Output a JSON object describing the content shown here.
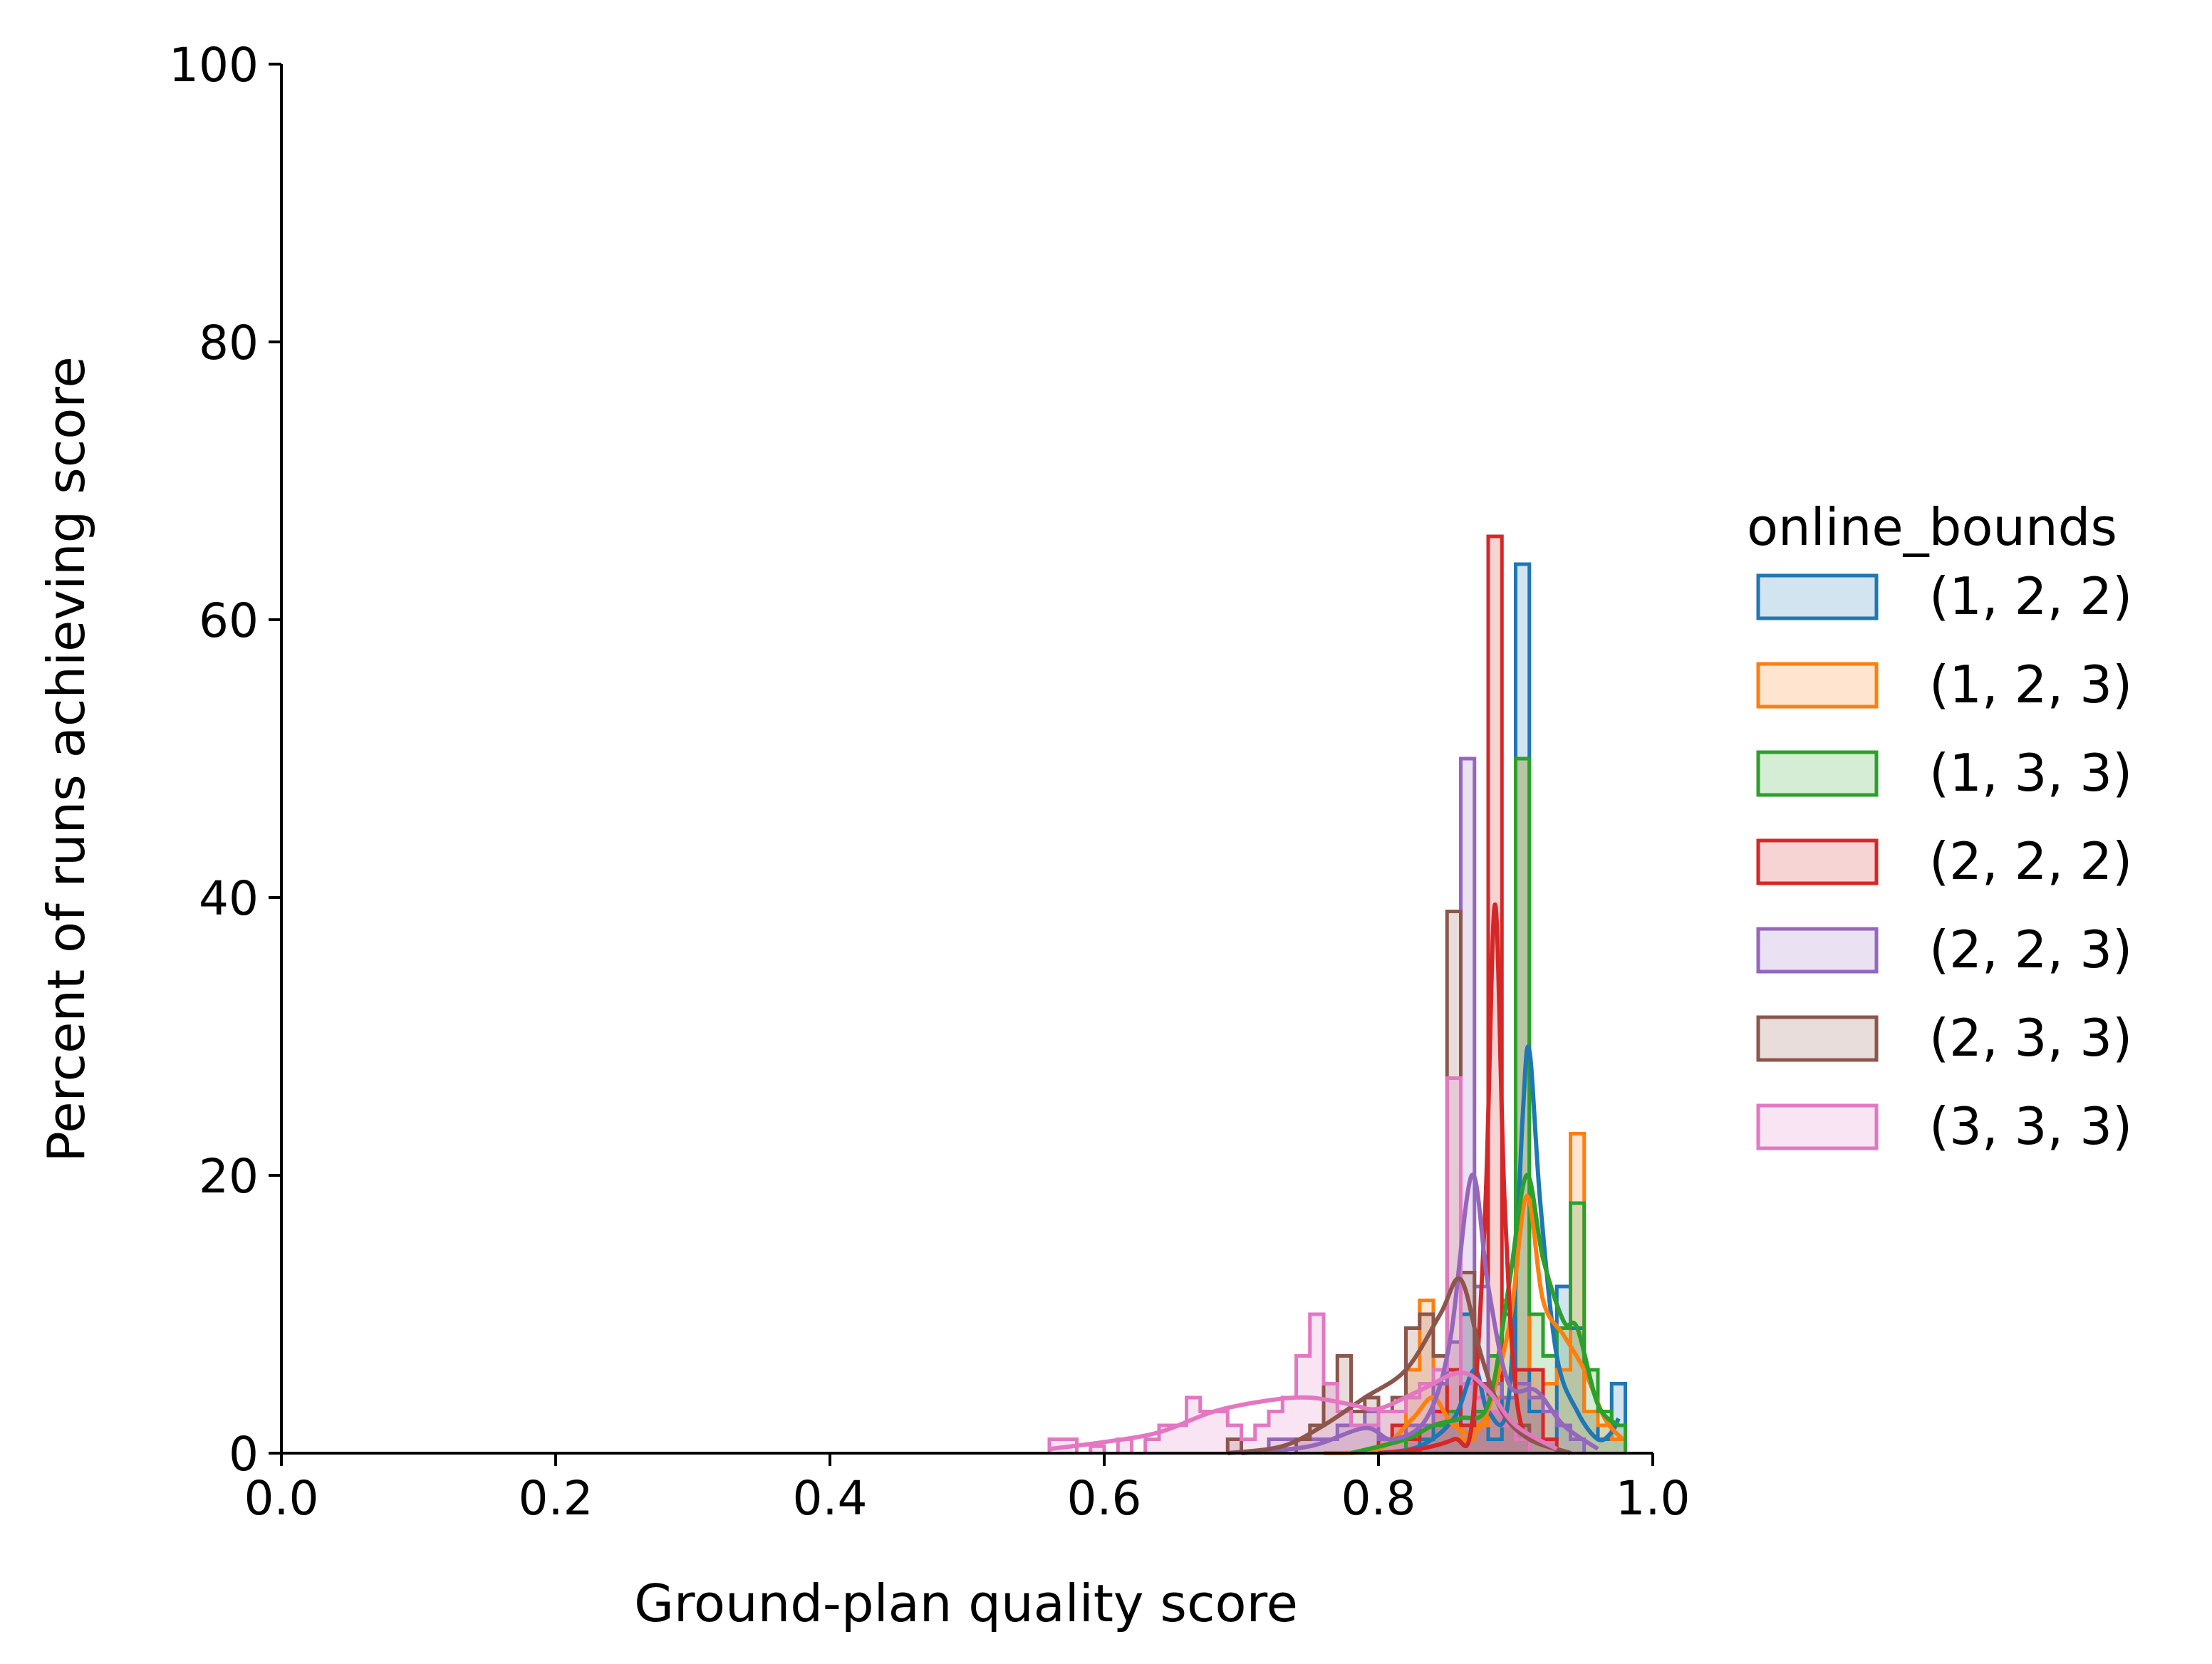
{
  "chart_data": {
    "type": "histogram",
    "xlabel": "Ground-plan quality score",
    "ylabel": "Percent of runs achieving score",
    "xlim": [
      0.0,
      1.0
    ],
    "ylim": [
      0,
      100
    ],
    "xticks": [
      0.0,
      0.2,
      0.4,
      0.6,
      0.8,
      1.0
    ],
    "xtick_labels": [
      "0.0",
      "0.2",
      "0.4",
      "0.6",
      "0.8",
      "1.0"
    ],
    "yticks": [
      0,
      20,
      40,
      60,
      80,
      100
    ],
    "ytick_labels": [
      "0",
      "20",
      "40",
      "60",
      "80",
      "100"
    ],
    "grid": false,
    "legend_title": "online_bounds",
    "legend_placement": "right",
    "series": [
      {
        "name": "(1, 2, 2)",
        "color": "#1f77b4",
        "bins": [
          [
            0.83,
            0.84,
            1
          ],
          [
            0.84,
            0.85,
            2
          ],
          [
            0.85,
            0.86,
            3
          ],
          [
            0.86,
            0.87,
            10
          ],
          [
            0.87,
            0.88,
            3
          ],
          [
            0.88,
            0.89,
            1
          ],
          [
            0.89,
            0.9,
            4
          ],
          [
            0.9,
            0.91,
            64
          ],
          [
            0.91,
            0.92,
            3
          ],
          [
            0.92,
            0.93,
            1
          ],
          [
            0.93,
            0.94,
            12
          ],
          [
            0.94,
            0.95,
            9
          ],
          [
            0.95,
            0.96,
            3
          ],
          [
            0.96,
            0.97,
            1
          ],
          [
            0.97,
            0.98,
            5
          ]
        ],
        "kde": [
          [
            0.8,
            0
          ],
          [
            0.83,
            0.5
          ],
          [
            0.855,
            2.5
          ],
          [
            0.87,
            6
          ],
          [
            0.88,
            3
          ],
          [
            0.895,
            4
          ],
          [
            0.905,
            24
          ],
          [
            0.91,
            29
          ],
          [
            0.918,
            18
          ],
          [
            0.93,
            7
          ],
          [
            0.945,
            3
          ],
          [
            0.96,
            1
          ],
          [
            0.97,
            1.5
          ],
          [
            0.975,
            2.5
          ]
        ]
      },
      {
        "name": "(1, 2, 3)",
        "color": "#ff7f0e",
        "bins": [
          [
            0.8,
            0.81,
            1
          ],
          [
            0.81,
            0.82,
            2
          ],
          [
            0.82,
            0.83,
            6
          ],
          [
            0.83,
            0.84,
            11
          ],
          [
            0.84,
            0.85,
            5
          ],
          [
            0.85,
            0.86,
            2
          ],
          [
            0.86,
            0.87,
            1
          ],
          [
            0.87,
            0.88,
            2
          ],
          [
            0.88,
            0.89,
            4
          ],
          [
            0.89,
            0.9,
            11
          ],
          [
            0.9,
            0.91,
            50
          ],
          [
            0.91,
            0.92,
            6
          ],
          [
            0.92,
            0.93,
            5
          ],
          [
            0.93,
            0.94,
            6
          ],
          [
            0.94,
            0.95,
            23
          ],
          [
            0.95,
            0.96,
            3
          ],
          [
            0.96,
            0.97,
            2
          ],
          [
            0.97,
            0.98,
            1
          ]
        ],
        "kde": [
          [
            0.76,
            0
          ],
          [
            0.8,
            0.3
          ],
          [
            0.825,
            2.5
          ],
          [
            0.84,
            4
          ],
          [
            0.855,
            2
          ],
          [
            0.875,
            2
          ],
          [
            0.895,
            9
          ],
          [
            0.908,
            18.5
          ],
          [
            0.92,
            11
          ],
          [
            0.935,
            8.5
          ],
          [
            0.95,
            6
          ],
          [
            0.965,
            2.5
          ],
          [
            0.978,
            1
          ]
        ]
      },
      {
        "name": "(1, 3, 3)",
        "color": "#2ca02c",
        "bins": [
          [
            0.82,
            0.83,
            1
          ],
          [
            0.83,
            0.84,
            2
          ],
          [
            0.84,
            0.85,
            2
          ],
          [
            0.85,
            0.86,
            3
          ],
          [
            0.86,
            0.87,
            2
          ],
          [
            0.87,
            0.88,
            3
          ],
          [
            0.88,
            0.89,
            7
          ],
          [
            0.89,
            0.9,
            10
          ],
          [
            0.9,
            0.91,
            50
          ],
          [
            0.91,
            0.92,
            10
          ],
          [
            0.92,
            0.93,
            7
          ],
          [
            0.93,
            0.94,
            9
          ],
          [
            0.94,
            0.95,
            18
          ],
          [
            0.95,
            0.96,
            6
          ],
          [
            0.96,
            0.97,
            3
          ],
          [
            0.97,
            0.98,
            2
          ]
        ],
        "kde": [
          [
            0.78,
            0
          ],
          [
            0.82,
            1
          ],
          [
            0.84,
            2
          ],
          [
            0.86,
            2.5
          ],
          [
            0.88,
            3.5
          ],
          [
            0.895,
            12
          ],
          [
            0.908,
            20
          ],
          [
            0.92,
            14
          ],
          [
            0.935,
            9.5
          ],
          [
            0.945,
            9
          ],
          [
            0.96,
            3.5
          ],
          [
            0.975,
            2
          ]
        ]
      },
      {
        "name": "(2, 2, 2)",
        "color": "#d62728",
        "bins": [
          [
            0.8,
            0.81,
            1
          ],
          [
            0.81,
            0.82,
            2
          ],
          [
            0.82,
            0.83,
            1
          ],
          [
            0.83,
            0.84,
            2
          ],
          [
            0.84,
            0.85,
            3
          ],
          [
            0.85,
            0.86,
            6
          ],
          [
            0.86,
            0.87,
            2
          ],
          [
            0.87,
            0.88,
            5
          ],
          [
            0.88,
            0.89,
            66
          ],
          [
            0.89,
            0.9,
            4
          ],
          [
            0.9,
            0.91,
            6
          ],
          [
            0.91,
            0.92,
            6
          ],
          [
            0.92,
            0.93,
            1
          ]
        ],
        "kde": [
          [
            0.8,
            0
          ],
          [
            0.83,
            0.3
          ],
          [
            0.855,
            1
          ],
          [
            0.868,
            2
          ],
          [
            0.878,
            18
          ],
          [
            0.885,
            39.5
          ],
          [
            0.892,
            18
          ],
          [
            0.902,
            3
          ],
          [
            0.92,
            0.8
          ],
          [
            0.94,
            0
          ]
        ]
      },
      {
        "name": "(2, 2, 3)",
        "color": "#9467bd",
        "bins": [
          [
            0.72,
            0.73,
            1
          ],
          [
            0.73,
            0.74,
            1
          ],
          [
            0.74,
            0.75,
            1
          ],
          [
            0.75,
            0.76,
            1
          ],
          [
            0.76,
            0.77,
            1
          ],
          [
            0.77,
            0.78,
            2
          ],
          [
            0.78,
            0.79,
            2
          ],
          [
            0.79,
            0.8,
            3
          ],
          [
            0.8,
            0.81,
            1
          ],
          [
            0.81,
            0.82,
            1
          ],
          [
            0.82,
            0.83,
            2
          ],
          [
            0.83,
            0.84,
            2
          ],
          [
            0.84,
            0.85,
            5
          ],
          [
            0.85,
            0.86,
            8
          ],
          [
            0.86,
            0.87,
            50
          ],
          [
            0.87,
            0.88,
            12
          ],
          [
            0.88,
            0.89,
            5
          ],
          [
            0.89,
            0.9,
            4
          ],
          [
            0.9,
            0.91,
            5
          ],
          [
            0.91,
            0.92,
            4
          ],
          [
            0.92,
            0.93,
            3
          ],
          [
            0.93,
            0.94,
            2
          ],
          [
            0.94,
            0.95,
            1
          ]
        ],
        "kde": [
          [
            0.7,
            0
          ],
          [
            0.75,
            0.5
          ],
          [
            0.79,
            1.8
          ],
          [
            0.81,
            1
          ],
          [
            0.835,
            2.5
          ],
          [
            0.852,
            8
          ],
          [
            0.868,
            20
          ],
          [
            0.88,
            12
          ],
          [
            0.895,
            5
          ],
          [
            0.915,
            4.5
          ],
          [
            0.935,
            2
          ],
          [
            0.96,
            0.3
          ]
        ]
      },
      {
        "name": "(2, 3, 3)",
        "color": "#8c564b",
        "bins": [
          [
            0.69,
            0.7,
            1
          ],
          [
            0.74,
            0.75,
            1
          ],
          [
            0.75,
            0.76,
            2
          ],
          [
            0.76,
            0.77,
            5
          ],
          [
            0.77,
            0.78,
            7
          ],
          [
            0.78,
            0.79,
            3
          ],
          [
            0.79,
            0.8,
            4
          ],
          [
            0.8,
            0.81,
            3
          ],
          [
            0.81,
            0.82,
            4
          ],
          [
            0.82,
            0.83,
            9
          ],
          [
            0.83,
            0.84,
            10
          ],
          [
            0.84,
            0.85,
            7
          ],
          [
            0.85,
            0.86,
            39
          ],
          [
            0.86,
            0.87,
            13
          ],
          [
            0.87,
            0.88,
            5
          ],
          [
            0.88,
            0.89,
            3
          ],
          [
            0.89,
            0.9,
            2
          ],
          [
            0.9,
            0.91,
            2
          ]
        ],
        "kde": [
          [
            0.69,
            0
          ],
          [
            0.73,
            0.5
          ],
          [
            0.76,
            2
          ],
          [
            0.79,
            4
          ],
          [
            0.82,
            6
          ],
          [
            0.845,
            10
          ],
          [
            0.86,
            12.5
          ],
          [
            0.875,
            7
          ],
          [
            0.89,
            3
          ],
          [
            0.91,
            1
          ],
          [
            0.94,
            0
          ]
        ]
      },
      {
        "name": "(3, 3, 3)",
        "color": "#e377c2",
        "bins": [
          [
            0.56,
            0.57,
            1
          ],
          [
            0.57,
            0.58,
            1
          ],
          [
            0.59,
            0.6,
            0.5
          ],
          [
            0.61,
            0.62,
            1
          ],
          [
            0.63,
            0.64,
            1
          ],
          [
            0.64,
            0.65,
            2
          ],
          [
            0.65,
            0.66,
            2
          ],
          [
            0.66,
            0.67,
            4
          ],
          [
            0.67,
            0.68,
            3
          ],
          [
            0.68,
            0.69,
            3
          ],
          [
            0.69,
            0.7,
            2
          ],
          [
            0.7,
            0.71,
            1
          ],
          [
            0.71,
            0.72,
            2
          ],
          [
            0.72,
            0.73,
            3
          ],
          [
            0.73,
            0.74,
            4
          ],
          [
            0.74,
            0.75,
            7
          ],
          [
            0.75,
            0.76,
            10
          ],
          [
            0.76,
            0.77,
            5
          ],
          [
            0.77,
            0.78,
            3
          ],
          [
            0.78,
            0.79,
            2
          ],
          [
            0.79,
            0.8,
            2
          ],
          [
            0.8,
            0.81,
            3
          ],
          [
            0.81,
            0.82,
            3
          ],
          [
            0.82,
            0.83,
            4
          ],
          [
            0.83,
            0.84,
            5
          ],
          [
            0.84,
            0.85,
            6
          ],
          [
            0.85,
            0.86,
            27
          ],
          [
            0.86,
            0.87,
            5
          ],
          [
            0.87,
            0.88,
            4
          ],
          [
            0.88,
            0.89,
            3
          ],
          [
            0.89,
            0.9,
            2
          ],
          [
            0.9,
            0.91,
            1
          ]
        ],
        "kde": [
          [
            0.56,
            0.3
          ],
          [
            0.6,
            0.8
          ],
          [
            0.64,
            1.5
          ],
          [
            0.68,
            3
          ],
          [
            0.72,
            3.8
          ],
          [
            0.75,
            4
          ],
          [
            0.78,
            3.5
          ],
          [
            0.8,
            3.2
          ],
          [
            0.83,
            4.5
          ],
          [
            0.86,
            5.8
          ],
          [
            0.88,
            4.5
          ],
          [
            0.9,
            2
          ],
          [
            0.93,
            0.3
          ]
        ]
      }
    ]
  }
}
